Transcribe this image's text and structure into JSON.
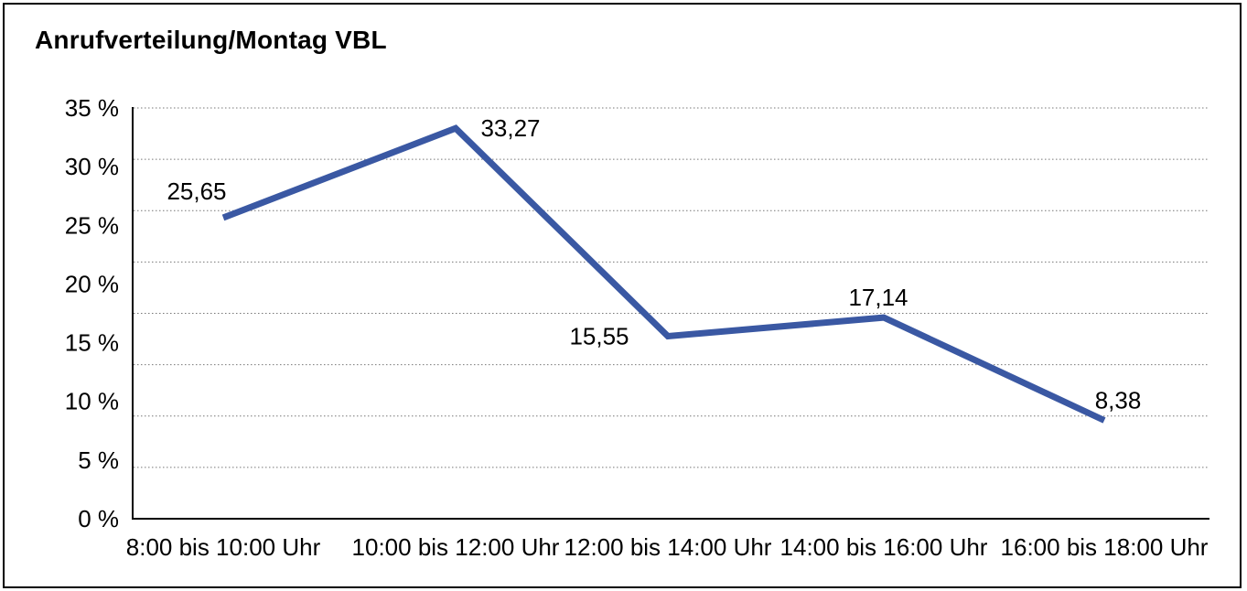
{
  "frame": {
    "background": "#ffffff",
    "border_color": "#000000"
  },
  "chart_data": {
    "type": "line",
    "title": "Anrufverteilung/Montag VBL",
    "categories": [
      "8:00 bis 10:00 Uhr",
      "10:00 bis 12:00 Uhr",
      "12:00 bis 14:00 Uhr",
      "14:00 bis 16:00 Uhr",
      "16:00 bis 18:00 Uhr"
    ],
    "values": [
      25.65,
      33.27,
      15.55,
      17.14,
      8.38
    ],
    "point_labels": [
      "25,65",
      "33,27",
      "15,55",
      "17,14",
      "8,38"
    ],
    "xlabel": "",
    "ylabel": "",
    "ylim": [
      0,
      35
    ],
    "y_tick_values": [
      0,
      5,
      10,
      15,
      20,
      25,
      30,
      35
    ],
    "y_tick_labels": [
      "0 %",
      "5 %",
      "10 %",
      "15 %",
      "20 %",
      "25 %",
      "30 %",
      "35 %"
    ],
    "decimal_separator": ",",
    "legend": "none",
    "grid": {
      "orientation": "horizontal",
      "style": "dotted",
      "line_count": 9,
      "color": "#777777"
    },
    "line_color": "#3A58A3",
    "axis_color": "#000000",
    "text_color": "#000000"
  }
}
